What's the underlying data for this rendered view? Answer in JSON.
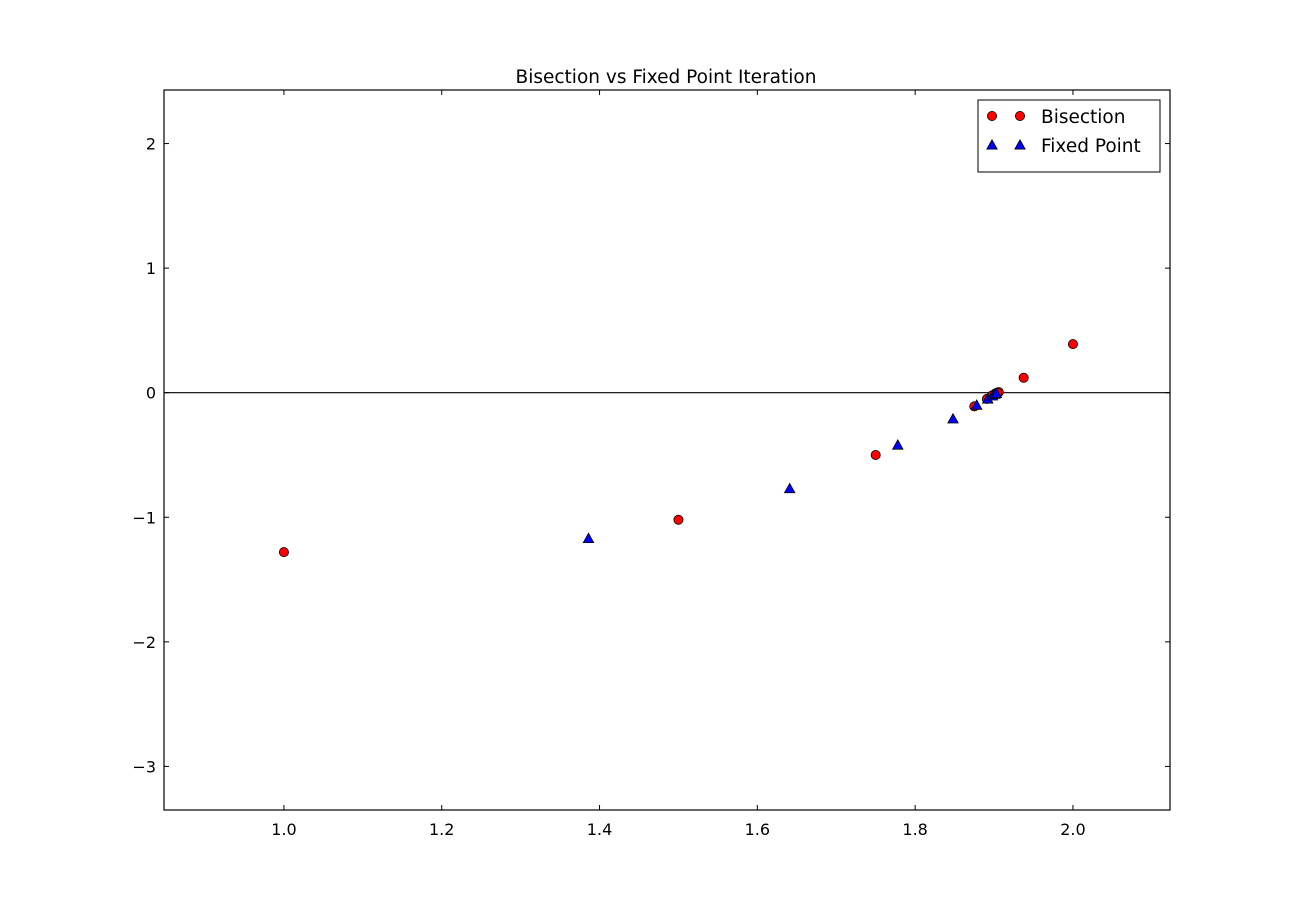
{
  "chart_data": {
    "type": "scatter",
    "title": "Bisection vs Fixed Point Iteration",
    "xlabel": "",
    "ylabel": "",
    "xlim": [
      0.848,
      2.123
    ],
    "ylim": [
      -3.35,
      2.43
    ],
    "x_ticks": [
      1.0,
      1.2,
      1.4,
      1.6,
      1.8,
      2.0
    ],
    "x_tick_labels": [
      "1.0",
      "1.2",
      "1.4",
      "1.6",
      "1.8",
      "2.0"
    ],
    "y_ticks": [
      2,
      1,
      0,
      -1,
      -2,
      -3
    ],
    "y_tick_labels": [
      "2",
      "1",
      "0",
      "−1",
      "−2",
      "−3"
    ],
    "reference_line_y": 0,
    "grid": false,
    "legend_position": "top-right",
    "series": [
      {
        "name": "Bisection",
        "marker": "circle",
        "color": "#ff0000",
        "points": [
          {
            "x": 1.0,
            "y": -1.28
          },
          {
            "x": 2.0,
            "y": 0.39
          },
          {
            "x": 1.5,
            "y": -1.02
          },
          {
            "x": 1.75,
            "y": -0.5
          },
          {
            "x": 1.875,
            "y": -0.11
          },
          {
            "x": 1.9375,
            "y": 0.12
          },
          {
            "x": 1.906,
            "y": 0.005
          },
          {
            "x": 1.891,
            "y": -0.05
          },
          {
            "x": 1.898,
            "y": -0.02
          },
          {
            "x": 1.902,
            "y": -0.005
          },
          {
            "x": 1.904,
            "y": 0.0
          }
        ]
      },
      {
        "name": "Fixed Point",
        "marker": "triangle",
        "color": "#0000ff",
        "points": [
          {
            "x": 1.386,
            "y": -1.17
          },
          {
            "x": 1.641,
            "y": -0.77
          },
          {
            "x": 1.778,
            "y": -0.42
          },
          {
            "x": 1.848,
            "y": -0.21
          },
          {
            "x": 1.878,
            "y": -0.1
          },
          {
            "x": 1.892,
            "y": -0.05
          },
          {
            "x": 1.898,
            "y": -0.025
          },
          {
            "x": 1.901,
            "y": -0.012
          },
          {
            "x": 1.903,
            "y": -0.006
          }
        ]
      }
    ]
  }
}
